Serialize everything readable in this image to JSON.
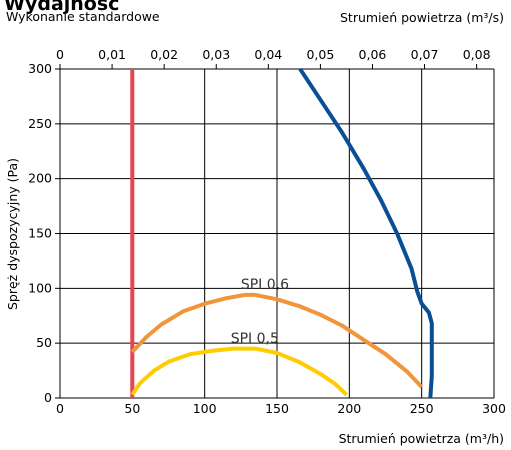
{
  "chart_data": {
    "type": "line",
    "title": "Wydajność",
    "subtitle": "Wykonanie standardowe",
    "xlabel": "Strumień powietrza (m³/h)",
    "x2label": "Strumień powietrza (m³/s)",
    "ylabel": "Spręż dyspozycyjny (Pa)",
    "xlim": [
      0,
      300
    ],
    "ylim": [
      0,
      300
    ],
    "x_ticks": [
      "0",
      "50",
      "100",
      "150",
      "200",
      "250",
      "300"
    ],
    "x2_ticks": [
      "0",
      "0,01",
      "0,02",
      "0,03",
      "0,04",
      "0,05",
      "0,06",
      "0,07",
      "0,08"
    ],
    "y_ticks": [
      "0",
      "50",
      "100",
      "150",
      "200",
      "250",
      "300"
    ],
    "grid": true,
    "series": [
      {
        "color": "#e8434f",
        "points": [
          [
            50,
            0
          ],
          [
            50,
            300
          ]
        ]
      },
      {
        "color": "#0a4f96",
        "points": [
          [
            166,
            300
          ],
          [
            180,
            272
          ],
          [
            195,
            242
          ],
          [
            210,
            209
          ],
          [
            222,
            180
          ],
          [
            233,
            150
          ],
          [
            243,
            118
          ],
          [
            247,
            97
          ],
          [
            250,
            86
          ],
          [
            255,
            78
          ],
          [
            257,
            68
          ],
          [
            257,
            50
          ],
          [
            257,
            20
          ],
          [
            256,
            0
          ]
        ]
      },
      {
        "color": "#f0953a",
        "points": [
          [
            50,
            42
          ],
          [
            60,
            56
          ],
          [
            70,
            67
          ],
          [
            85,
            79
          ],
          [
            100,
            86
          ],
          [
            115,
            91
          ],
          [
            128,
            94
          ],
          [
            135,
            94
          ],
          [
            150,
            90
          ],
          [
            165,
            84
          ],
          [
            180,
            76
          ],
          [
            195,
            66
          ],
          [
            210,
            53
          ],
          [
            225,
            40
          ],
          [
            240,
            24
          ],
          [
            250,
            10
          ]
        ]
      },
      {
        "color": "#ffcc00",
        "points": [
          [
            50,
            3
          ],
          [
            55,
            13
          ],
          [
            65,
            25
          ],
          [
            75,
            33
          ],
          [
            90,
            40
          ],
          [
            105,
            43
          ],
          [
            120,
            45
          ],
          [
            135,
            45
          ],
          [
            150,
            41
          ],
          [
            165,
            33
          ],
          [
            180,
            22
          ],
          [
            190,
            13
          ],
          [
            198,
            3
          ]
        ]
      }
    ],
    "annotations": [
      {
        "text": "SPI 0,6",
        "x": 125,
        "y": 103
      },
      {
        "text": "SPI 0,5",
        "x": 118,
        "y": 54
      }
    ]
  }
}
